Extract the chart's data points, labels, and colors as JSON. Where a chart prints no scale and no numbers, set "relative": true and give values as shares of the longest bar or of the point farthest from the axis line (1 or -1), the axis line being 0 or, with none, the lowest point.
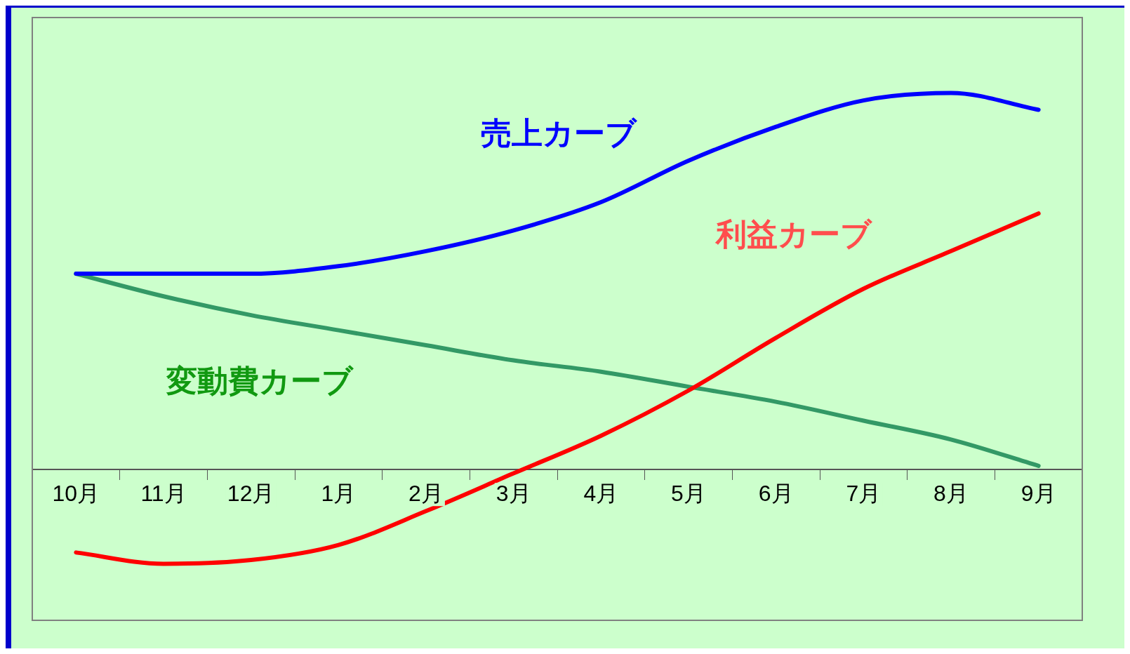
{
  "chart_data": {
    "type": "line",
    "relative": true,
    "categories": [
      "10月",
      "11月",
      "12月",
      "1月",
      "2月",
      "3月",
      "4月",
      "5月",
      "6月",
      "7月",
      "8月",
      "9月"
    ],
    "series": [
      {
        "name": "売上カーブ",
        "color": "#0000ff",
        "values": [
          0.52,
          0.52,
          0.52,
          0.54,
          0.58,
          0.635,
          0.71,
          0.82,
          0.91,
          0.98,
          1,
          0.955
        ]
      },
      {
        "name": "利益カーブ",
        "color": "#ff0000",
        "values": [
          -0.22,
          -0.25,
          -0.24,
          -0.2,
          -0.11,
          -0.01,
          0.09,
          0.21,
          0.35,
          0.48,
          0.58,
          0.68
        ]
      },
      {
        "name": "変動費カーブ",
        "color": "#339966",
        "values": [
          0.52,
          0.46,
          0.41,
          0.37,
          0.33,
          0.29,
          0.26,
          0.22,
          0.18,
          0.13,
          0.08,
          0.01
        ]
      }
    ],
    "grid": false,
    "legend": false,
    "marker": "none",
    "line_style": "solid"
  }
}
